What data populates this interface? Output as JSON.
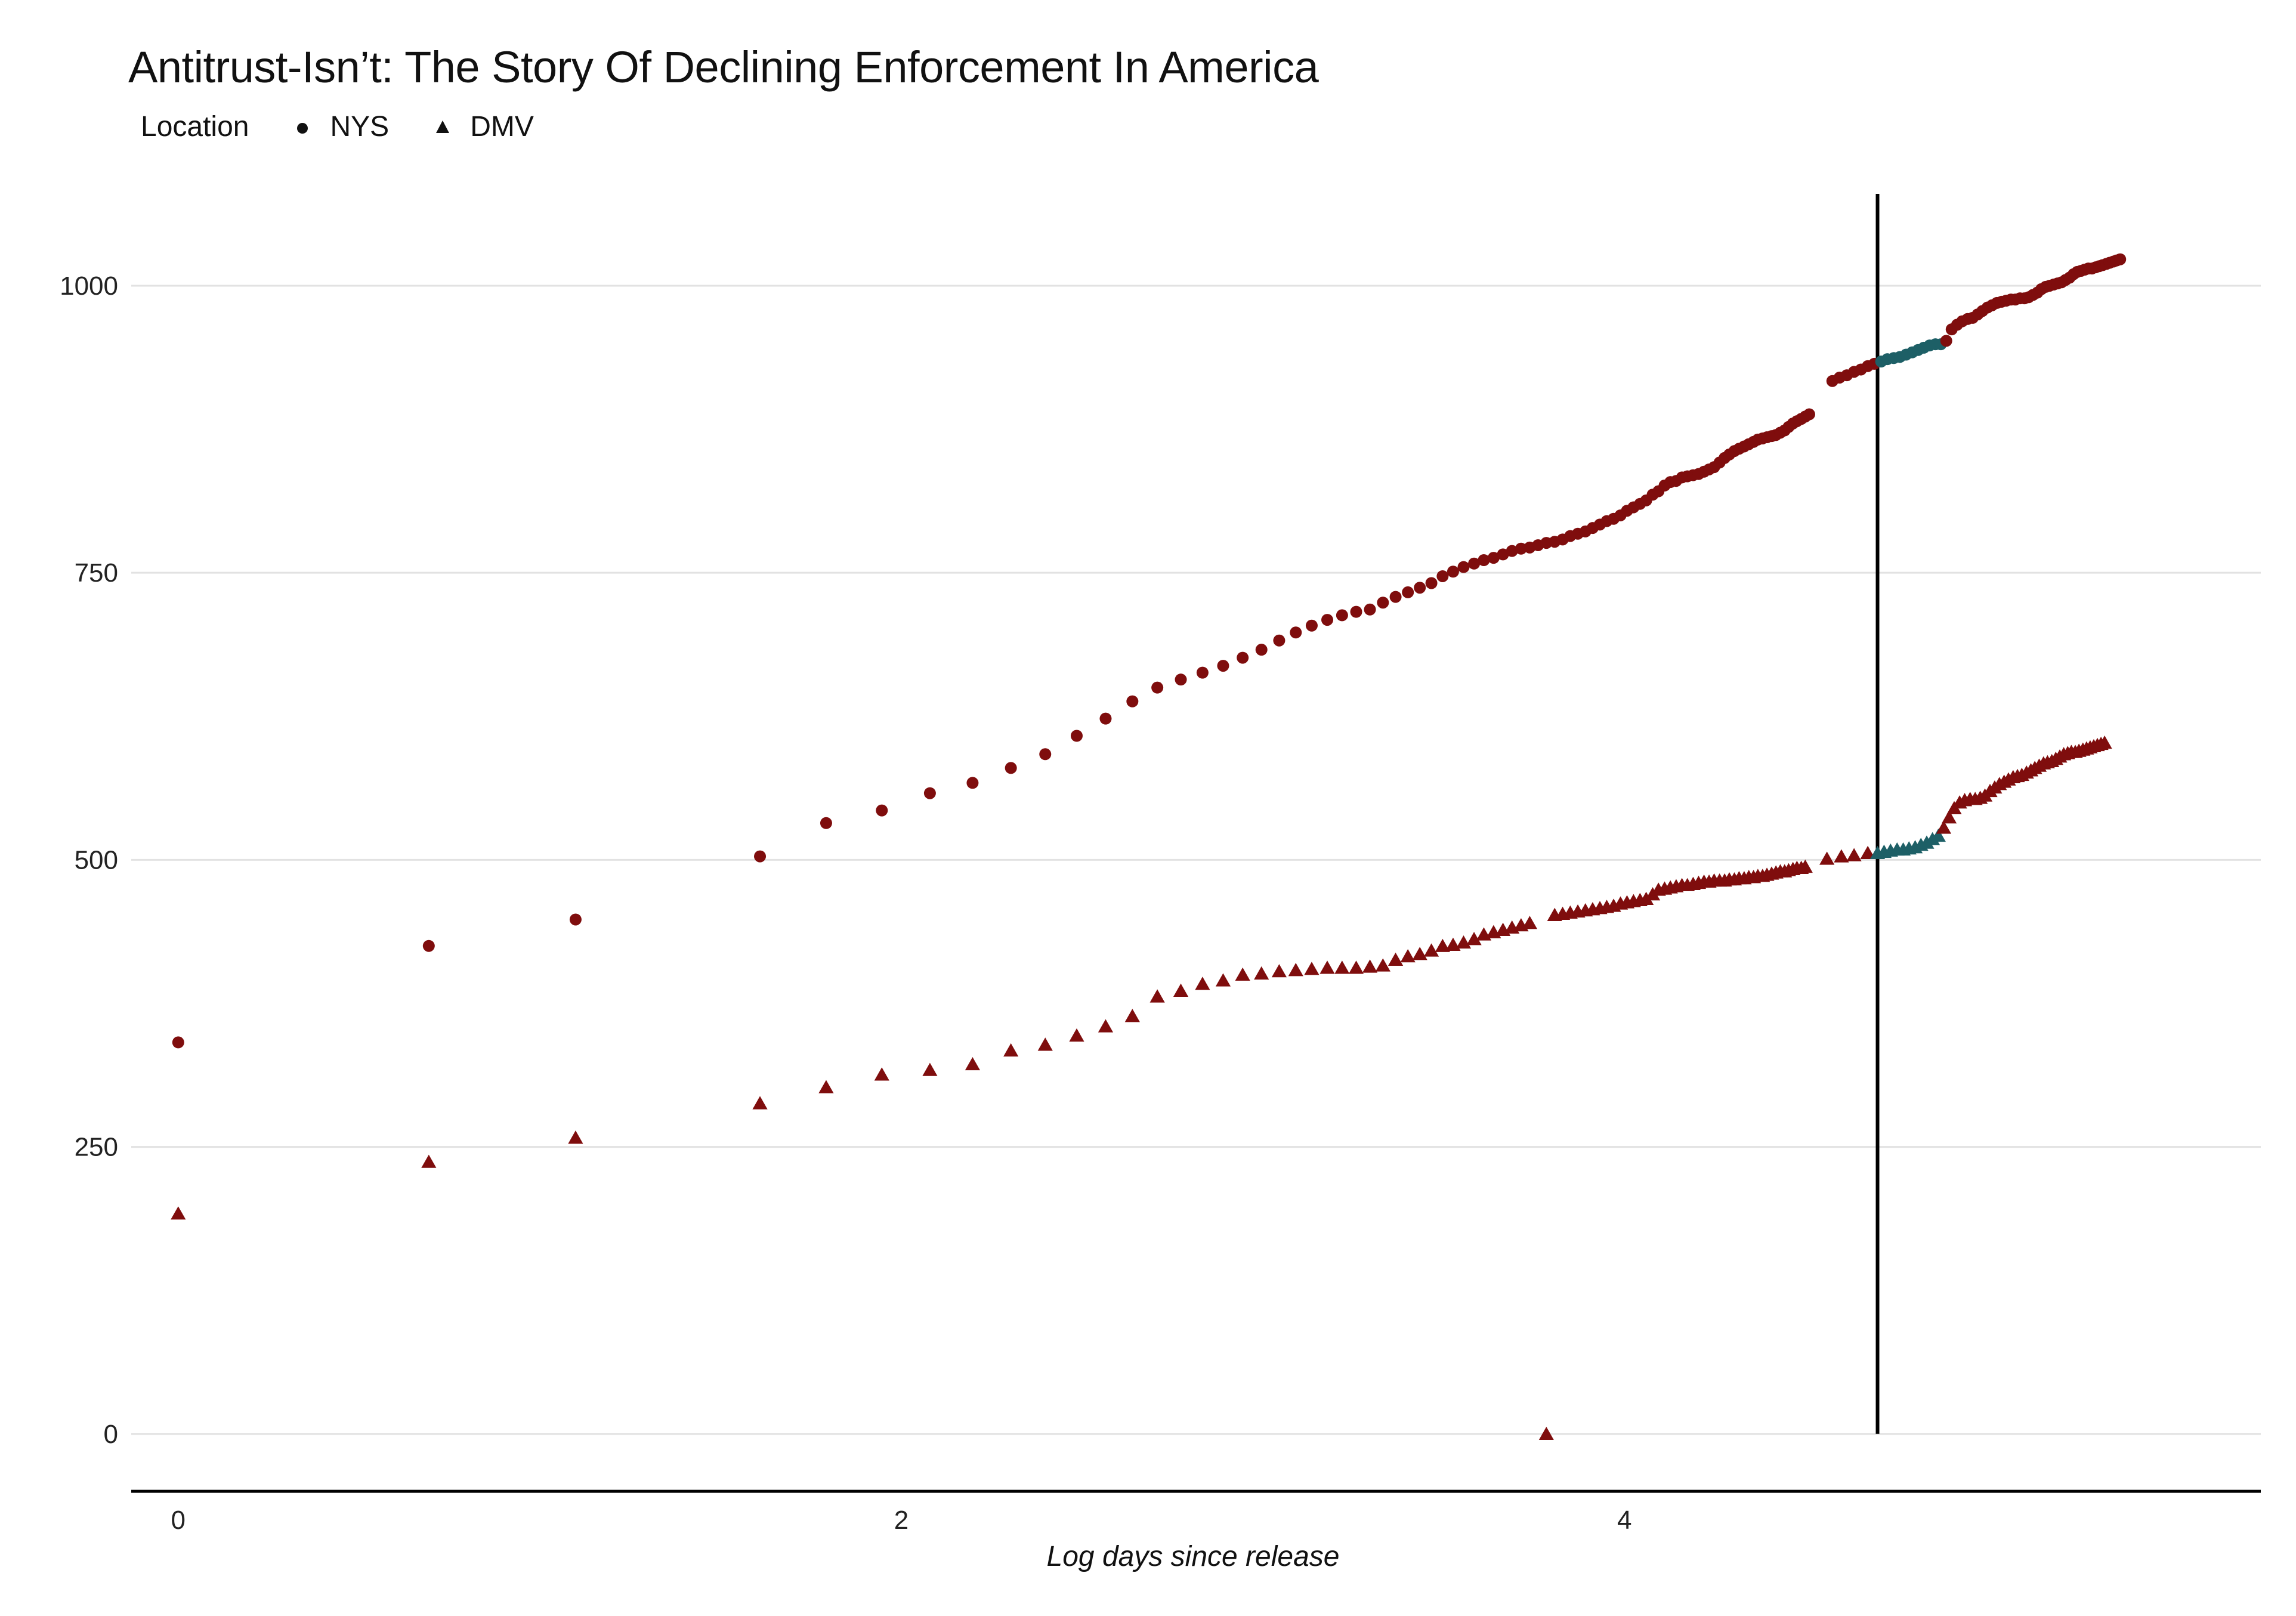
{
  "colors": {
    "series_red": "#7f0d0d",
    "series_teal": "#1d5f66",
    "gridline": "#e2e2e2",
    "axis": "#000000",
    "vline": "#000000"
  },
  "chart_data": {
    "type": "scatter",
    "title": "Antitrust-Isn’t: The Story Of Declining Enforcement In  America",
    "xlabel": "Log days since release",
    "ylabel": "",
    "legend": {
      "title": "Location",
      "position": "top-left",
      "entries": [
        {
          "name": "NYS",
          "marker": "circle"
        },
        {
          "name": "DMV",
          "marker": "triangle"
        }
      ]
    },
    "xlim": [
      -0.13,
      5.76
    ],
    "ylim": [
      -50,
      1080
    ],
    "xticks": [
      0,
      2,
      4
    ],
    "yticks": [
      0,
      250,
      500,
      750,
      1000
    ],
    "grid": "horizontal major",
    "vline": 4.7,
    "teal_range": [
      4.7,
      4.88
    ],
    "series": [
      {
        "name": "NYS",
        "marker": "circle",
        "points": [
          [
            0.0,
            341
          ],
          [
            0.693,
            425
          ],
          [
            1.099,
            448
          ],
          [
            1.609,
            503
          ],
          [
            1.792,
            532
          ],
          [
            1.946,
            543
          ],
          [
            2.079,
            558
          ],
          [
            2.197,
            567
          ],
          [
            2.303,
            580
          ],
          [
            2.398,
            592
          ],
          [
            2.485,
            608
          ],
          [
            2.565,
            623
          ],
          [
            2.639,
            638
          ],
          [
            2.708,
            650
          ],
          [
            2.773,
            657
          ],
          [
            2.833,
            663
          ],
          [
            2.89,
            669
          ],
          [
            2.944,
            676
          ],
          [
            2.996,
            683
          ],
          [
            3.045,
            691
          ],
          [
            3.091,
            698
          ],
          [
            3.135,
            704
          ],
          [
            3.178,
            709
          ],
          [
            3.219,
            713
          ],
          [
            3.258,
            716
          ],
          [
            3.296,
            718
          ],
          [
            3.332,
            724
          ],
          [
            3.367,
            729
          ],
          [
            3.401,
            733
          ],
          [
            3.434,
            737
          ],
          [
            3.466,
            741
          ],
          [
            3.497,
            747
          ],
          [
            3.526,
            751
          ],
          [
            3.555,
            755
          ],
          [
            3.584,
            758
          ],
          [
            3.611,
            761
          ],
          [
            3.638,
            763
          ],
          [
            3.664,
            766
          ],
          [
            3.689,
            769
          ],
          [
            3.714,
            771
          ],
          [
            3.738,
            772
          ],
          [
            3.761,
            774
          ],
          [
            3.784,
            776
          ],
          [
            3.807,
            777
          ],
          [
            3.829,
            779
          ],
          [
            3.85,
            782
          ],
          [
            3.871,
            784
          ],
          [
            3.892,
            786
          ],
          [
            3.912,
            789
          ],
          [
            3.932,
            792
          ],
          [
            3.951,
            795
          ],
          [
            3.97,
            797
          ],
          [
            3.989,
            800
          ],
          [
            4.007,
            804
          ],
          [
            4.025,
            807
          ],
          [
            4.043,
            810
          ],
          [
            4.06,
            813
          ],
          [
            4.078,
            818
          ],
          [
            4.094,
            821
          ],
          [
            4.111,
            826
          ],
          [
            4.127,
            829
          ],
          [
            4.143,
            830
          ],
          [
            4.159,
            833
          ],
          [
            4.174,
            834
          ],
          [
            4.19,
            835
          ],
          [
            4.205,
            836
          ],
          [
            4.22,
            838
          ],
          [
            4.234,
            840
          ],
          [
            4.248,
            842
          ],
          [
            4.263,
            846
          ],
          [
            4.277,
            850
          ],
          [
            4.29,
            853
          ],
          [
            4.304,
            856
          ],
          [
            4.317,
            858
          ],
          [
            4.331,
            860
          ],
          [
            4.344,
            862
          ],
          [
            4.357,
            864
          ],
          [
            4.369,
            866
          ],
          [
            4.382,
            867
          ],
          [
            4.394,
            868
          ],
          [
            4.407,
            869
          ],
          [
            4.419,
            870
          ],
          [
            4.431,
            872
          ],
          [
            4.443,
            874
          ],
          [
            4.454,
            877
          ],
          [
            4.466,
            880
          ],
          [
            4.477,
            882
          ],
          [
            4.489,
            884
          ],
          [
            4.5,
            886
          ],
          [
            4.511,
            888
          ],
          [
            4.575,
            917
          ],
          [
            4.595,
            920
          ],
          [
            4.615,
            922
          ],
          [
            4.635,
            925
          ],
          [
            4.654,
            927
          ],
          [
            4.673,
            930
          ],
          [
            4.691,
            932
          ],
          [
            4.71,
            934
          ],
          [
            4.727,
            936
          ],
          [
            4.745,
            937
          ],
          [
            4.762,
            938
          ],
          [
            4.779,
            940
          ],
          [
            4.796,
            942
          ],
          [
            4.812,
            944
          ],
          [
            4.828,
            946
          ],
          [
            4.844,
            948
          ],
          [
            4.86,
            949
          ],
          [
            4.875,
            949
          ],
          [
            4.89,
            952
          ],
          [
            4.905,
            962
          ],
          [
            4.92,
            966
          ],
          [
            4.934,
            969
          ],
          [
            4.949,
            971
          ],
          [
            4.963,
            972
          ],
          [
            4.977,
            975
          ],
          [
            4.99,
            978
          ],
          [
            5.004,
            981
          ],
          [
            5.017,
            983
          ],
          [
            5.03,
            985
          ],
          [
            5.043,
            986
          ],
          [
            5.056,
            987
          ],
          [
            5.069,
            988
          ],
          [
            5.081,
            988
          ],
          [
            5.094,
            989
          ],
          [
            5.106,
            989
          ],
          [
            5.118,
            990
          ],
          [
            5.13,
            992
          ],
          [
            5.142,
            994
          ],
          [
            5.153,
            997
          ],
          [
            5.165,
            999
          ],
          [
            5.176,
            1000
          ],
          [
            5.187,
            1001
          ],
          [
            5.198,
            1002
          ],
          [
            5.209,
            1003
          ],
          [
            5.22,
            1005
          ],
          [
            5.231,
            1007
          ],
          [
            5.242,
            1010
          ],
          [
            5.252,
            1012
          ],
          [
            5.263,
            1013
          ],
          [
            5.273,
            1014
          ],
          [
            5.283,
            1015
          ],
          [
            5.293,
            1015
          ],
          [
            5.303,
            1016
          ],
          [
            5.313,
            1017
          ],
          [
            5.323,
            1018
          ],
          [
            5.333,
            1019
          ],
          [
            5.342,
            1020
          ],
          [
            5.352,
            1021
          ],
          [
            5.361,
            1022
          ],
          [
            5.371,
            1023
          ]
        ]
      },
      {
        "name": "DMV",
        "marker": "triangle",
        "points": [
          [
            0.0,
            192
          ],
          [
            0.693,
            237
          ],
          [
            1.099,
            258
          ],
          [
            1.609,
            288
          ],
          [
            1.792,
            302
          ],
          [
            1.946,
            313
          ],
          [
            2.079,
            317
          ],
          [
            2.197,
            322
          ],
          [
            2.303,
            334
          ],
          [
            2.398,
            339
          ],
          [
            2.485,
            347
          ],
          [
            2.565,
            355
          ],
          [
            2.639,
            364
          ],
          [
            2.708,
            381
          ],
          [
            2.773,
            386
          ],
          [
            2.833,
            392
          ],
          [
            2.89,
            395
          ],
          [
            2.944,
            400
          ],
          [
            2.996,
            401
          ],
          [
            3.045,
            403
          ],
          [
            3.091,
            404
          ],
          [
            3.135,
            405
          ],
          [
            3.178,
            406
          ],
          [
            3.219,
            406
          ],
          [
            3.258,
            406
          ],
          [
            3.296,
            407
          ],
          [
            3.332,
            408
          ],
          [
            3.367,
            413
          ],
          [
            3.401,
            416
          ],
          [
            3.434,
            418
          ],
          [
            3.466,
            421
          ],
          [
            3.497,
            425
          ],
          [
            3.526,
            426
          ],
          [
            3.555,
            428
          ],
          [
            3.584,
            431
          ],
          [
            3.611,
            435
          ],
          [
            3.638,
            437
          ],
          [
            3.664,
            439
          ],
          [
            3.689,
            441
          ],
          [
            3.714,
            443
          ],
          [
            3.738,
            445
          ],
          [
            3.784,
            0
          ],
          [
            3.807,
            452
          ],
          [
            3.829,
            453
          ],
          [
            3.85,
            454
          ],
          [
            3.871,
            455
          ],
          [
            3.892,
            456
          ],
          [
            3.912,
            457
          ],
          [
            3.932,
            458
          ],
          [
            3.951,
            459
          ],
          [
            3.97,
            460
          ],
          [
            3.989,
            462
          ],
          [
            4.007,
            463
          ],
          [
            4.025,
            464
          ],
          [
            4.043,
            465
          ],
          [
            4.06,
            466
          ],
          [
            4.078,
            470
          ],
          [
            4.094,
            474
          ],
          [
            4.111,
            475
          ],
          [
            4.127,
            476
          ],
          [
            4.143,
            477
          ],
          [
            4.159,
            478
          ],
          [
            4.174,
            478
          ],
          [
            4.19,
            479
          ],
          [
            4.205,
            480
          ],
          [
            4.22,
            481
          ],
          [
            4.234,
            481
          ],
          [
            4.248,
            482
          ],
          [
            4.263,
            482
          ],
          [
            4.277,
            482
          ],
          [
            4.29,
            483
          ],
          [
            4.304,
            483
          ],
          [
            4.317,
            484
          ],
          [
            4.331,
            484
          ],
          [
            4.344,
            485
          ],
          [
            4.357,
            485
          ],
          [
            4.369,
            486
          ],
          [
            4.382,
            486
          ],
          [
            4.394,
            487
          ],
          [
            4.407,
            488
          ],
          [
            4.419,
            489
          ],
          [
            4.431,
            490
          ],
          [
            4.443,
            490
          ],
          [
            4.454,
            491
          ],
          [
            4.466,
            492
          ],
          [
            4.477,
            493
          ],
          [
            4.489,
            493
          ],
          [
            4.5,
            494
          ],
          [
            4.56,
            501
          ],
          [
            4.6,
            503
          ],
          [
            4.635,
            504
          ],
          [
            4.673,
            506
          ],
          [
            4.7,
            506
          ],
          [
            4.718,
            507
          ],
          [
            4.736,
            508
          ],
          [
            4.754,
            509
          ],
          [
            4.771,
            509
          ],
          [
            4.787,
            510
          ],
          [
            4.804,
            511
          ],
          [
            4.82,
            513
          ],
          [
            4.836,
            515
          ],
          [
            4.852,
            518
          ],
          [
            4.868,
            521
          ],
          [
            4.883,
            528
          ],
          [
            4.898,
            537
          ],
          [
            4.912,
            545
          ],
          [
            4.927,
            550
          ],
          [
            4.941,
            552
          ],
          [
            4.956,
            553
          ],
          [
            4.97,
            553
          ],
          [
            4.984,
            554
          ],
          [
            4.997,
            556
          ],
          [
            5.011,
            560
          ],
          [
            5.024,
            563
          ],
          [
            5.037,
            566
          ],
          [
            5.05,
            568
          ],
          [
            5.062,
            570
          ],
          [
            5.075,
            572
          ],
          [
            5.087,
            573
          ],
          [
            5.099,
            574
          ],
          [
            5.112,
            576
          ],
          [
            5.124,
            578
          ],
          [
            5.135,
            580
          ],
          [
            5.147,
            582
          ],
          [
            5.159,
            584
          ],
          [
            5.17,
            585
          ],
          [
            5.182,
            586
          ],
          [
            5.193,
            588
          ],
          [
            5.204,
            590
          ],
          [
            5.215,
            592
          ],
          [
            5.226,
            593
          ],
          [
            5.236,
            594
          ],
          [
            5.247,
            594
          ],
          [
            5.257,
            595
          ],
          [
            5.268,
            596
          ],
          [
            5.278,
            597
          ],
          [
            5.288,
            598
          ],
          [
            5.298,
            599
          ],
          [
            5.308,
            600
          ],
          [
            5.318,
            601
          ],
          [
            5.328,
            602
          ]
        ]
      }
    ]
  }
}
